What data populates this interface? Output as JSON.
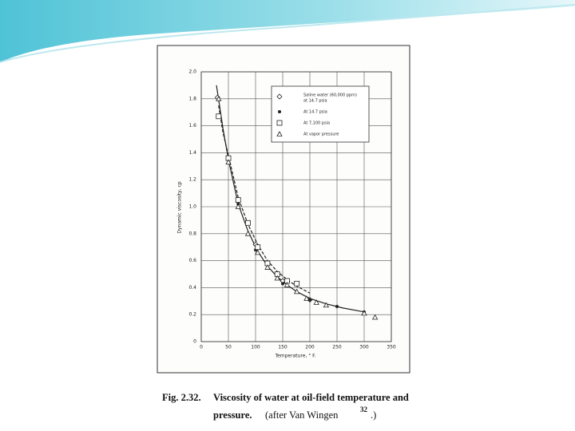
{
  "chart_data": {
    "type": "scatter",
    "xlabel": "Temperature, ° F.",
    "ylabel": "Dynamic viscosity, cp",
    "xlim": [
      0,
      350
    ],
    "xticks": [
      0,
      50,
      100,
      150,
      200,
      250,
      300,
      350
    ],
    "ylim": [
      0,
      2.0
    ],
    "yticks": [
      0,
      0.2,
      0.4,
      0.6,
      0.8,
      {
        "value": 1,
        "label": "1.0"
      },
      1.2,
      1.4,
      1.6,
      1.8,
      {
        "value": 2,
        "label": "2.0"
      }
    ],
    "grid": true,
    "legend": "upper right",
    "legend_title": "Saline water (60,000 ppm)",
    "series": [
      {
        "name": "at 14.7 psia",
        "marker": "diamond",
        "color": "#222",
        "x": [
          30,
          100,
          150,
          200
        ],
        "values": [
          1.81,
          0.72,
          0.45,
          0.31
        ]
      },
      {
        "name": "At 14.7 psia",
        "marker": "circle",
        "color": "#222",
        "x": [
          50,
          68,
          100,
          150,
          200,
          250,
          300
        ],
        "values": [
          1.36,
          1.02,
          0.68,
          0.43,
          0.31,
          0.26,
          0.22
        ]
      },
      {
        "name": "At 7,100 psia",
        "marker": "square",
        "color": "#222",
        "x": [
          32,
          50,
          68,
          86,
          104,
          122,
          140,
          158,
          176
        ],
        "values": [
          1.67,
          1.36,
          1.05,
          0.88,
          0.7,
          0.58,
          0.5,
          0.45,
          0.43
        ]
      },
      {
        "name": "At vapor pressure",
        "marker": "triangle",
        "color": "#222",
        "x": [
          32,
          50,
          68,
          86,
          104,
          122,
          140,
          158,
          176,
          194,
          212,
          230,
          300,
          320
        ],
        "values": [
          1.8,
          1.33,
          1.0,
          0.8,
          0.66,
          0.55,
          0.47,
          0.42,
          0.37,
          0.32,
          0.29,
          0.27,
          0.21,
          0.18
        ]
      }
    ],
    "curves": [
      {
        "style": "solid",
        "color": "#222",
        "x": [
          28,
          40,
          50,
          68,
          86,
          104,
          122,
          140,
          158,
          176,
          200,
          230,
          260,
          300
        ],
        "values": [
          1.9,
          1.58,
          1.35,
          1.02,
          0.82,
          0.67,
          0.56,
          0.48,
          0.42,
          0.37,
          0.32,
          0.28,
          0.25,
          0.22
        ]
      },
      {
        "style": "dashed",
        "color": "#222",
        "x": [
          32,
          40,
          50,
          68,
          86,
          104,
          122,
          140,
          158,
          176,
          200
        ],
        "values": [
          1.75,
          1.55,
          1.38,
          1.07,
          0.87,
          0.72,
          0.6,
          0.52,
          0.46,
          0.41,
          0.36
        ]
      }
    ]
  },
  "caption": {
    "label": "Fig. 2.32.",
    "line1": "Viscosity of water at oil-field temperature and",
    "line2": "pressure.",
    "source": "(after Van Wingen",
    "ref": "32",
    "end": ".)"
  }
}
